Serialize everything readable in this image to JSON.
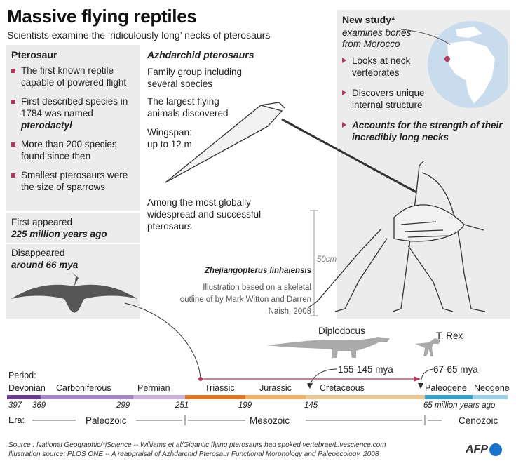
{
  "header": {
    "title": "Massive flying reptiles",
    "subtitle": "Scientists examine the ‘ridiculously long’ necks of pterosaurs"
  },
  "pterosaur": {
    "heading": "Pterosaur",
    "facts": [
      "The first known reptile capable of powered flight",
      "First described species in 1784 was named",
      "More than 200 species found since then",
      "Smallest pterosaurs were the size of sparrows"
    ],
    "fact2_em": "pterodactyl",
    "first_appeared_label": "First appeared",
    "first_appeared_value": "225 million years ago",
    "disappeared_label": "Disappeared",
    "disappeared_value": "around 66 mya"
  },
  "azhdarchid": {
    "heading": "Azhdarchid pterosaurs",
    "p1": "Family group including several species",
    "p2": "The largest flying animals discovered",
    "p3a": "Wingspan:",
    "p3b": "up to 12 m",
    "p4": "Among the most globally widespread and successful pterosaurs"
  },
  "illustration": {
    "species": "Zhejiangopterus linhaiensis",
    "credit": "Illustration based on a skeletal outline of by Mark Witton and Darren Naish, 2008",
    "scale_label": "50cm"
  },
  "study": {
    "heading": "New study*",
    "sub1": "examines bones",
    "sub2": "from Morocco",
    "points": [
      "Looks at neck vertebrates",
      "Discovers unique internal structure",
      "Accounts for the strength of their incredibly long necks"
    ]
  },
  "timeline": {
    "period_label": "Period:",
    "periods": [
      "Devonian",
      "Carboniferous",
      "Permian",
      "Triassic",
      "Jurassic",
      "Cretaceous",
      "Paleogene",
      "Neogene"
    ],
    "period_colors": [
      "#6b3c8e",
      "#a389c4",
      "#c9b3d9",
      "#d9782a",
      "#f0b26b",
      "#e7c99a",
      "#3a9fc8",
      "#9fd0e6"
    ],
    "ticks": [
      "397",
      "369",
      "299",
      "251",
      "199",
      "145",
      "65 million years ago"
    ],
    "era_label": "Era:",
    "eras": [
      "Paleozoic",
      "Mesozoic",
      "Cenozoic"
    ],
    "diplodocus": "Diplodocus",
    "diplodocus_range": "155-145 mya",
    "trex": "T. Rex",
    "trex_range": "67-65 mya"
  },
  "footer": {
    "source1": "Source : National Geographic/*iScience -- Williams et al/Gigantic flying pterosaurs had spoked vertebrae/Livescience.com",
    "source2": "Illustration source: PLOS ONE -- A reappraisal of Azhdarchid Pterosaur Functional Morphology and Paleoecology, 2008",
    "logo": "AFP"
  }
}
